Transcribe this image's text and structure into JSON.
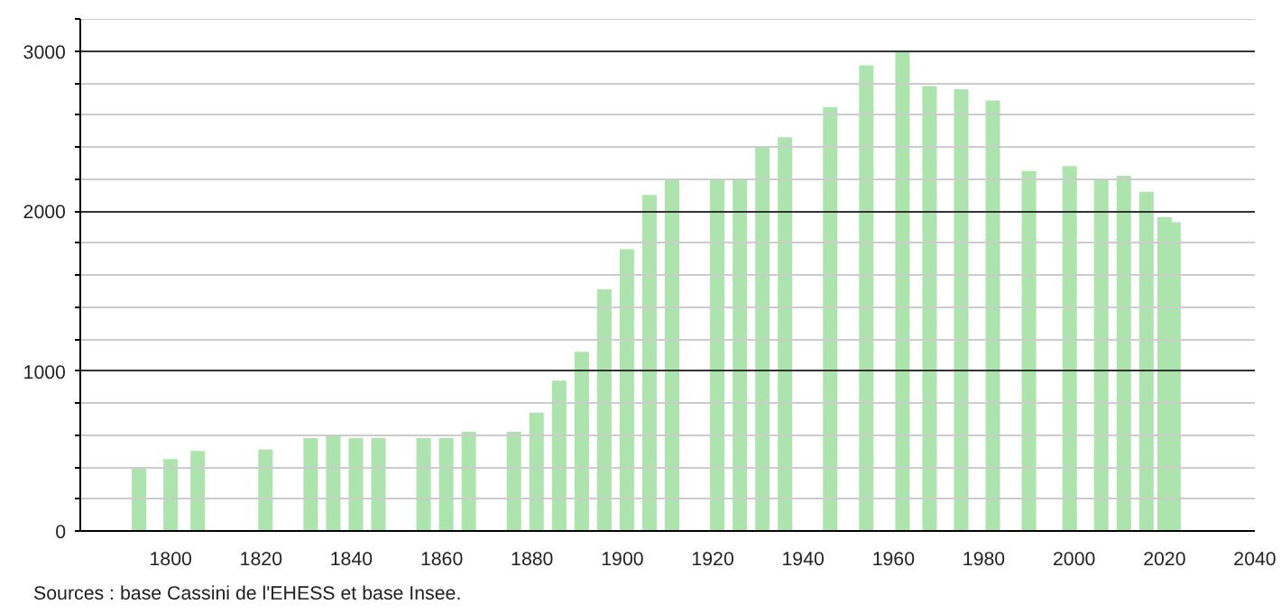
{
  "chart_data": {
    "type": "bar",
    "x": [
      1793,
      1800,
      1806,
      1821,
      1831,
      1836,
      1841,
      1846,
      1856,
      1861,
      1866,
      1876,
      1881,
      1886,
      1891,
      1896,
      1901,
      1906,
      1911,
      1921,
      1926,
      1931,
      1936,
      1946,
      1954,
      1962,
      1968,
      1975,
      1982,
      1990,
      1999,
      2006,
      2011,
      2016,
      2020,
      2022
    ],
    "values": [
      400,
      450,
      500,
      510,
      580,
      600,
      580,
      580,
      580,
      580,
      620,
      620,
      740,
      940,
      1120,
      1510,
      1760,
      2100,
      2200,
      2200,
      2200,
      2400,
      2460,
      2650,
      2910,
      3000,
      2780,
      2760,
      2690,
      2250,
      2280,
      2200,
      2220,
      2120,
      1960,
      1930
    ],
    "color": "#ade4ad",
    "xlim": [
      1780,
      2040
    ],
    "xticks": [
      1800,
      1820,
      1840,
      1860,
      1880,
      1900,
      1920,
      1940,
      1960,
      1980,
      2000,
      2020,
      2040
    ],
    "ylim": [
      0,
      3200
    ],
    "yticks": [
      0,
      {
        "value": 200,
        "label": null
      },
      {
        "value": 400,
        "label": null
      },
      {
        "value": 600,
        "label": null
      },
      {
        "value": 800,
        "label": null
      },
      1000,
      {
        "value": 1200,
        "label": null
      },
      {
        "value": 1400,
        "label": null
      },
      {
        "value": 1600,
        "label": null
      },
      {
        "value": 1800,
        "label": null
      },
      2000,
      {
        "value": 2200,
        "label": null
      },
      {
        "value": 2400,
        "label": null
      },
      {
        "value": 2600,
        "label": null
      },
      {
        "value": 2800,
        "label": null
      },
      3000,
      {
        "value": 3200,
        "label": null
      }
    ],
    "grid": "y",
    "annotations": [
      "Sources : base Cassini de l'EHESS et base Insee."
    ]
  }
}
